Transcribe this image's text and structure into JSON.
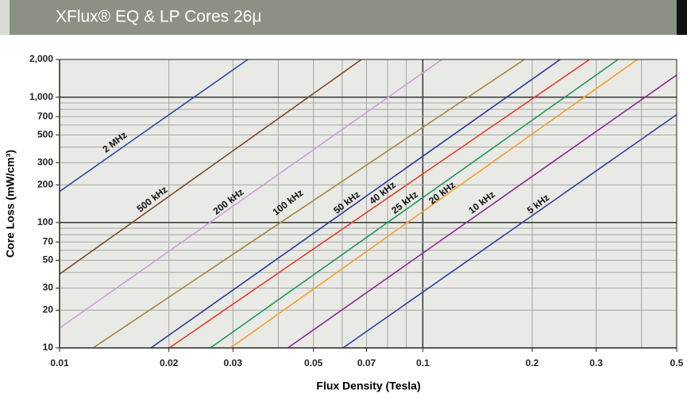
{
  "chart_data": {
    "type": "line",
    "title": "XFlux® EQ & LP Cores 26μ",
    "x_label": "Flux Density (Tesla)",
    "y_label": "Core Loss (mW/cm³)",
    "xlog": true,
    "ylog": true,
    "grid": true,
    "xlim": [
      0.01,
      0.5
    ],
    "ylim": [
      10,
      2000
    ],
    "xticks": [
      0.01,
      0.02,
      0.03,
      0.05,
      0.07,
      0.1,
      0.2,
      0.3,
      0.5
    ],
    "yticks": [
      10,
      20,
      30,
      50,
      70,
      100,
      200,
      300,
      500,
      700,
      {
        "value": 1000,
        "label": "1,000"
      },
      {
        "value": 2000,
        "label": "2,000"
      }
    ],
    "xminor": [
      0.04,
      0.06,
      0.08,
      0.09,
      0.4
    ],
    "yminor": [
      40,
      60,
      80,
      90,
      400,
      600,
      800,
      900
    ],
    "series": [
      {
        "name": "2 MHz",
        "color": "#2f4aa0",
        "x": [
          0.01,
          0.033
        ],
        "values": [
          177,
          2000
        ]
      },
      {
        "name": "500 kHz",
        "color": "#7a4a2a",
        "x": [
          0.01,
          0.0678
        ],
        "values": [
          38.8,
          2000
        ]
      },
      {
        "name": "200 kHz",
        "color": "#c9a2d6",
        "x": [
          0.01,
          0.1129
        ],
        "values": [
          14.4,
          2000
        ]
      },
      {
        "name": "100 kHz",
        "color": "#a38a3c",
        "x": [
          0.01236,
          0.1905
        ],
        "values": [
          10,
          2000
        ]
      },
      {
        "name": "50 kHz",
        "color": "#2a3a96",
        "x": [
          0.01784,
          0.239
        ],
        "values": [
          10,
          2000
        ]
      },
      {
        "name": "40 kHz",
        "color": "#e0402a",
        "x": [
          0.02004,
          0.288
        ],
        "values": [
          10,
          2000
        ]
      },
      {
        "name": "25 kHz",
        "color": "#1f9a5a",
        "x": [
          0.026,
          0.345
        ],
        "values": [
          10,
          2000
        ]
      },
      {
        "name": "20 kHz",
        "color": "#f5a02a",
        "x": [
          0.02954,
          0.39
        ],
        "values": [
          10,
          2000
        ]
      },
      {
        "name": "10 kHz",
        "color": "#8a2a96",
        "x": [
          0.0425,
          0.5
        ],
        "values": [
          10,
          1503
        ]
      },
      {
        "name": "5 kHz",
        "color": "#3040a0",
        "x": [
          0.0603,
          0.5
        ],
        "values": [
          10,
          726
        ]
      }
    ]
  }
}
